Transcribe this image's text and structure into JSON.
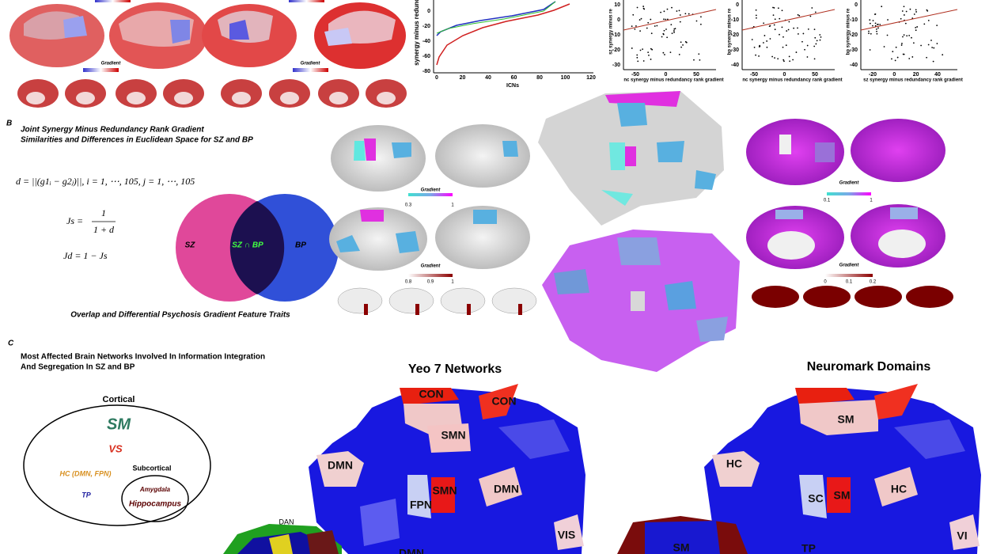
{
  "panel_a": {
    "line_plot": {
      "y_label": "synergy minus redund",
      "x_label": "ICNs",
      "yticks": [
        0,
        -20,
        -40,
        -60,
        -80
      ],
      "xticks": [
        0,
        20,
        40,
        60,
        80,
        100,
        120
      ]
    },
    "scatters": [
      {
        "y_label": "sz synergy minus re",
        "x_label": "nc synergy minus redundancy rank gradient",
        "yticks": [
          10,
          0,
          -10,
          -20,
          -30
        ],
        "xticks": [
          -50,
          0,
          50
        ]
      },
      {
        "y_label": "bp synergy minus re",
        "x_label": "nc synergy minus redundancy rank gradient",
        "yticks": [
          0,
          -10,
          -20,
          -30,
          -40
        ],
        "xticks": [
          -50,
          0,
          50
        ]
      },
      {
        "y_label": "bp synergy minus re",
        "x_label": "sz synergy minus redundancy rank gradient",
        "yticks": [
          0,
          -10,
          -20,
          -30,
          -40
        ],
        "xticks": [
          -20,
          0,
          20,
          40
        ]
      }
    ],
    "gradient_labels": [
      "Gradient",
      "Gradient"
    ]
  },
  "panel_b": {
    "letter": "B",
    "title": [
      "Joint Synergy Minus Redundancy Rank Gradient",
      "Similarities and Differences in Euclidean Space for SZ and BP"
    ],
    "equation_d": "d = ||(g1ᵢ − g2ⱼ)||, i = 1, ⋯, 105, j = 1, ⋯, 105",
    "equation_js": {
      "lhs": "Js =",
      "numerator": "1",
      "denominator": "1 + d"
    },
    "equation_jd": "Jd = 1 − Js",
    "venn": {
      "left": "SZ",
      "center": "SZ ∩ BP",
      "right": "BP"
    },
    "caption": "Overlap and Differential Psychosis Gradient Feature Traits",
    "colorbars": [
      {
        "title": "Gradient",
        "ticks": [
          "0.3",
          "1"
        ]
      },
      {
        "title": "Gradient",
        "ticks": [
          "0.8",
          "0.9",
          "1"
        ]
      },
      {
        "title": "Gradient",
        "ticks": [
          "0.1",
          "1"
        ]
      },
      {
        "title": "Gradient",
        "ticks": [
          "0",
          "0.1",
          "0.2"
        ]
      }
    ]
  },
  "panel_c": {
    "letter": "C",
    "title": [
      "Most Affected Brain Networks Involved In Information Integration",
      "And Segregation In SZ and BP"
    ],
    "diagram": {
      "cortical": "Cortical",
      "sm": "SM",
      "vs": "VS",
      "subcortical": "Subcortical",
      "hc": "HC (DMN, FPN)",
      "tp": "TP",
      "amygdala": "Amygdala",
      "hippocampus": "Hippocampus"
    },
    "yeo": {
      "title": "Yeo 7 Networks",
      "labels": [
        "CON",
        "CON",
        "SMN",
        "DMN",
        "SMN",
        "FPN",
        "DMN",
        "VIS",
        "DMN"
      ]
    },
    "neuromark": {
      "title": "Neuromark Domains",
      "labels": [
        "SM",
        "HC",
        "SC",
        "SM",
        "HC",
        "TP",
        "VI",
        "SM"
      ]
    },
    "dan": "DAN"
  }
}
